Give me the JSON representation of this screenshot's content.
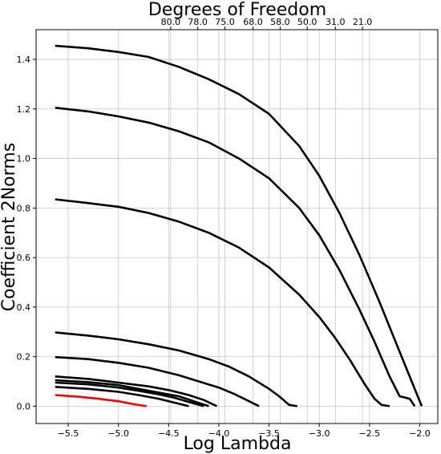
{
  "chart_data": {
    "type": "line",
    "title": "Degrees of Freedom",
    "xlabel": "Log Lambda",
    "ylabel": "Coefficient 2Norms",
    "xlim": [
      -5.82,
      -1.82
    ],
    "ylim": [
      -0.07,
      1.52
    ],
    "xticks": [
      -5.5,
      -5.0,
      -4.5,
      -4.0,
      -3.5,
      -3.0,
      -2.5,
      -2.0
    ],
    "xtick_labels": [
      "−5.5",
      "−5.0",
      "−4.5",
      "−4.0",
      "−3.5",
      "−3.0",
      "−2.5",
      "−2.0"
    ],
    "yticks": [
      0.0,
      0.2,
      0.4,
      0.6,
      0.8,
      1.0,
      1.2,
      1.4
    ],
    "ytick_labels": [
      "0.0",
      "0.2",
      "0.4",
      "0.6",
      "0.8",
      "1.0",
      "1.2",
      "1.4"
    ],
    "top_ticks": [
      -4.48,
      -4.21,
      -3.94,
      -3.66,
      -3.39,
      -3.12,
      -2.84,
      -2.57
    ],
    "top_tick_labels": [
      "80.0",
      "78.0",
      "75.0",
      "68.0",
      "58.0",
      "50.0",
      "31.0",
      "21.0"
    ],
    "grid": true,
    "series": [
      {
        "color": "#000000",
        "x": [
          -5.63,
          -5.3,
          -5.0,
          -4.7,
          -4.4,
          -4.1,
          -3.8,
          -3.5,
          -3.2,
          -3.0,
          -2.8,
          -2.6,
          -2.4,
          -2.25,
          -2.1,
          -2.05,
          -1.98
        ],
        "y": [
          1.455,
          1.445,
          1.43,
          1.41,
          1.37,
          1.32,
          1.26,
          1.18,
          1.05,
          0.93,
          0.78,
          0.61,
          0.42,
          0.27,
          0.12,
          0.07,
          0.0
        ]
      },
      {
        "color": "#000000",
        "x": [
          -5.63,
          -5.3,
          -5.0,
          -4.7,
          -4.4,
          -4.1,
          -3.8,
          -3.5,
          -3.2,
          -3.0,
          -2.8,
          -2.6,
          -2.45,
          -2.3,
          -2.2,
          -2.1,
          -2.05
        ],
        "y": [
          1.205,
          1.19,
          1.17,
          1.145,
          1.11,
          1.065,
          1.0,
          0.92,
          0.8,
          0.69,
          0.55,
          0.39,
          0.26,
          0.12,
          0.04,
          0.03,
          0.0
        ]
      },
      {
        "color": "#000000",
        "x": [
          -5.63,
          -5.3,
          -5.0,
          -4.7,
          -4.4,
          -4.1,
          -3.8,
          -3.5,
          -3.2,
          -3.0,
          -2.85,
          -2.7,
          -2.55,
          -2.45,
          -2.38,
          -2.3
        ],
        "y": [
          0.835,
          0.82,
          0.805,
          0.78,
          0.745,
          0.7,
          0.64,
          0.56,
          0.45,
          0.36,
          0.28,
          0.19,
          0.09,
          0.03,
          0.005,
          0.0
        ]
      },
      {
        "color": "#000000",
        "x": [
          -5.63,
          -5.3,
          -5.0,
          -4.7,
          -4.4,
          -4.1,
          -3.9,
          -3.7,
          -3.5,
          -3.4,
          -3.3,
          -3.22
        ],
        "y": [
          0.298,
          0.285,
          0.27,
          0.25,
          0.225,
          0.19,
          0.16,
          0.12,
          0.07,
          0.04,
          0.005,
          0.0
        ]
      },
      {
        "color": "#000000",
        "x": [
          -5.63,
          -5.3,
          -5.0,
          -4.7,
          -4.4,
          -4.2,
          -4.0,
          -3.85,
          -3.75,
          -3.6
        ],
        "y": [
          0.198,
          0.19,
          0.175,
          0.155,
          0.125,
          0.1,
          0.075,
          0.05,
          0.03,
          0.0
        ]
      },
      {
        "color": "#000000",
        "x": [
          -5.63,
          -5.3,
          -5.0,
          -4.7,
          -4.5,
          -4.3,
          -4.15,
          -4.02
        ],
        "y": [
          0.12,
          0.11,
          0.095,
          0.08,
          0.065,
          0.045,
          0.025,
          0.0
        ]
      },
      {
        "color": "#000000",
        "x": [
          -5.63,
          -5.3,
          -5.0,
          -4.8,
          -4.6,
          -4.4,
          -4.25,
          -4.1
        ],
        "y": [
          0.105,
          0.097,
          0.085,
          0.07,
          0.055,
          0.04,
          0.02,
          0.0
        ]
      },
      {
        "color": "#000000",
        "x": [
          -5.63,
          -5.3,
          -5.0,
          -4.8,
          -4.6,
          -4.45,
          -4.3,
          -4.15
        ],
        "y": [
          0.095,
          0.088,
          0.075,
          0.062,
          0.048,
          0.035,
          0.017,
          0.0
        ]
      },
      {
        "color": "#000000",
        "x": [
          -5.63,
          -5.3,
          -5.0,
          -4.8,
          -4.6,
          -4.45,
          -4.3
        ],
        "y": [
          0.078,
          0.07,
          0.058,
          0.045,
          0.03,
          0.015,
          0.0
        ]
      },
      {
        "color": "#ff0000",
        "x": [
          -5.63,
          -5.4,
          -5.2,
          -5.0,
          -4.85,
          -4.72
        ],
        "y": [
          0.045,
          0.038,
          0.03,
          0.02,
          0.008,
          0.0
        ]
      }
    ]
  }
}
